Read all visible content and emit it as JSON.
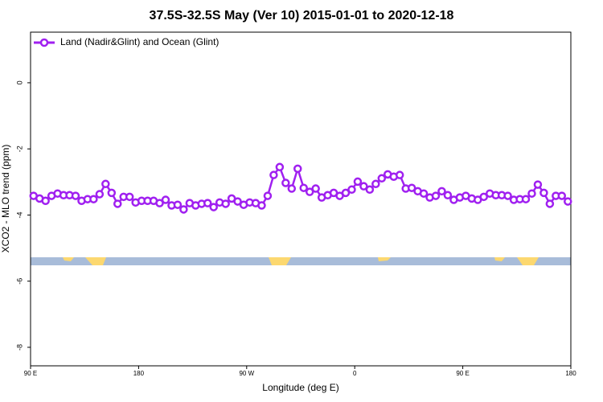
{
  "chart_data": {
    "type": "line",
    "title": "37.5S-32.5S May (Ver 10)   2015-01-01 to 2020-12-18",
    "x_label": "Longitude (deg E)",
    "y_label": "XCO2 - MLO trend (ppm)",
    "legend": "top-left",
    "x": [
      92.5,
      97.5,
      102.5,
      107.5,
      112.5,
      117.5,
      122.5,
      127.5,
      132.5,
      137.5,
      142.5,
      147.5,
      152.5,
      157.5,
      162.5,
      167.5,
      172.5,
      177.5,
      182.5,
      187.5,
      192.5,
      197.5,
      202.5,
      207.5,
      212.5,
      217.5,
      222.5,
      227.5,
      232.5,
      237.5,
      242.5,
      247.5,
      252.5,
      257.5,
      262.5,
      267.5,
      272.5,
      277.5,
      282.5,
      287.5,
      292.5,
      297.5,
      302.5,
      307.5,
      312.5,
      317.5,
      322.5,
      327.5,
      332.5,
      337.5,
      342.5,
      347.5,
      352.5,
      357.5,
      362.5,
      367.5,
      372.5,
      377.5,
      382.5,
      387.5,
      392.5,
      397.5,
      402.5,
      407.5,
      412.5,
      417.5,
      422.5,
      427.5,
      432.5,
      437.5,
      442.5,
      447.5,
      452.5,
      457.5,
      462.5,
      467.5,
      472.5,
      477.5,
      482.5,
      487.5,
      492.5,
      497.5,
      502.5,
      507.5,
      512.5,
      517.5,
      522.5,
      527.5,
      532.5,
      537.5
    ],
    "series": [
      {
        "name": "Land (Nadir&Glint) and Ocean (Glint)",
        "color": "#a020f0",
        "values": [
          -3.42,
          -3.5,
          -3.57,
          -3.42,
          -3.35,
          -3.4,
          -3.4,
          -3.42,
          -3.57,
          -3.52,
          -3.52,
          -3.37,
          -3.06,
          -3.33,
          -3.66,
          -3.45,
          -3.45,
          -3.62,
          -3.57,
          -3.57,
          -3.57,
          -3.64,
          -3.54,
          -3.71,
          -3.69,
          -3.83,
          -3.64,
          -3.71,
          -3.66,
          -3.64,
          -3.76,
          -3.62,
          -3.66,
          -3.5,
          -3.59,
          -3.69,
          -3.62,
          -3.64,
          -3.71,
          -3.42,
          -2.79,
          -2.55,
          -3.03,
          -3.2,
          -2.6,
          -3.18,
          -3.3,
          -3.2,
          -3.47,
          -3.4,
          -3.33,
          -3.42,
          -3.33,
          -3.23,
          -2.99,
          -3.13,
          -3.23,
          -3.06,
          -2.89,
          -2.77,
          -2.84,
          -2.79,
          -3.2,
          -3.18,
          -3.28,
          -3.35,
          -3.47,
          -3.42,
          -3.28,
          -3.4,
          -3.54,
          -3.47,
          -3.42,
          -3.5,
          -3.54,
          -3.45,
          -3.35,
          -3.4,
          -3.4,
          -3.42,
          -3.54,
          -3.52,
          -3.52,
          -3.35,
          -3.08,
          -3.33,
          -3.66,
          -3.42,
          -3.42,
          -3.59
        ]
      }
    ],
    "xlim": [
      90,
      540
    ],
    "xticks": [
      {
        "value": 90,
        "label": "90 E"
      },
      {
        "value": 180,
        "label": "180"
      },
      {
        "value": 270,
        "label": "90 W"
      },
      {
        "value": 360,
        "label": "0"
      },
      {
        "value": 450,
        "label": "90 E"
      },
      {
        "value": 540,
        "label": "180"
      }
    ],
    "ylim": [
      -8.56,
      1.53
    ],
    "yticks": [
      0,
      -2,
      -4,
      -6,
      -8
    ]
  }
}
